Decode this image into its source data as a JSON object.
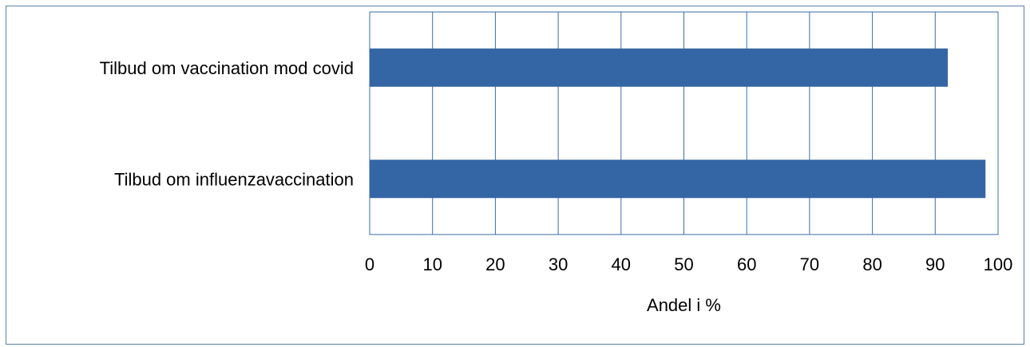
{
  "chart_data": {
    "type": "bar",
    "orientation": "horizontal",
    "categories": [
      "Tilbud om vaccination mod covid",
      "Tilbud om influenzavaccination"
    ],
    "values": [
      92,
      98
    ],
    "xlabel": "Andel i %",
    "xlim": [
      0,
      100
    ],
    "xticks": [
      "0",
      "10",
      "20",
      "30",
      "40",
      "50",
      "60",
      "70",
      "80",
      "90",
      "100"
    ],
    "grid": true,
    "legend": "none",
    "bar_color": "#3465a4",
    "grid_color": "#3a6ea8"
  }
}
